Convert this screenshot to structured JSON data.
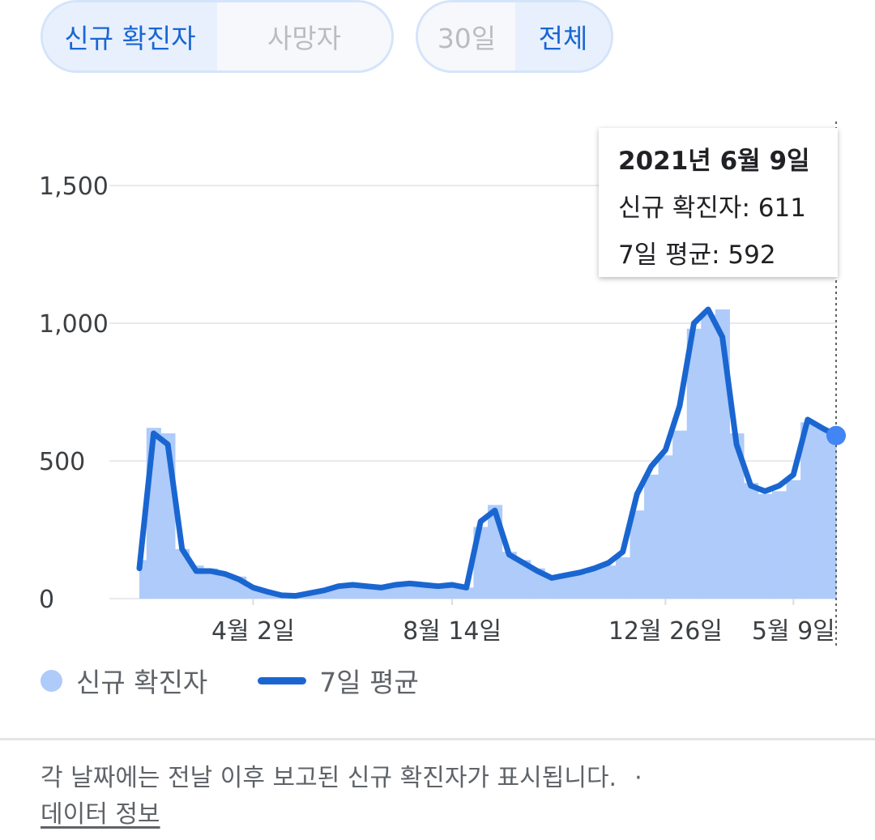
{
  "metric_toggle": {
    "cases": "신규 확진자",
    "deaths": "사망자"
  },
  "range_toggle": {
    "thirty_days": "30일",
    "all": "전체"
  },
  "tooltip": {
    "date": "2021년 6월 9일",
    "cases_line": "신규 확진자: 611",
    "average_line": "7일 평균: 592"
  },
  "legend": {
    "cases": "신규 확진자",
    "average": "7일 평균"
  },
  "footer": {
    "note": "각 날짜에는 전날 이후 보고된 신규 확진자가 표시됩니다.",
    "separator": "·",
    "link": "데이터 정보"
  },
  "colors": {
    "bars": "#aecbfa",
    "average_line": "#1a66d1",
    "marker": "#4285f4"
  },
  "chart_data": {
    "type": "bar",
    "y_ticks": [
      0,
      500,
      1000,
      1500
    ],
    "y_tick_labels": [
      "0",
      "500",
      "1,000",
      "1,500"
    ],
    "ylim": [
      0,
      1700
    ],
    "x_tick_labels": [
      "4월 2일",
      "8월 14일",
      "12월 26일",
      "5월 9일"
    ],
    "grid": true,
    "legend_position": "bottom",
    "selected_index": 49,
    "series": [
      {
        "name": "신규 확진자",
        "values": [
          140,
          620,
          600,
          180,
          120,
          110,
          90,
          80,
          40,
          25,
          15,
          10,
          20,
          30,
          45,
          50,
          45,
          40,
          50,
          55,
          50,
          45,
          50,
          40,
          260,
          340,
          170,
          140,
          110,
          80,
          90,
          90,
          110,
          120,
          150,
          320,
          450,
          520,
          610,
          980,
          1030,
          1050,
          600,
          420,
          380,
          390,
          430,
          640,
          620,
          611
        ]
      },
      {
        "name": "7일 평균",
        "values": [
          110,
          600,
          560,
          180,
          100,
          100,
          90,
          70,
          40,
          25,
          12,
          10,
          20,
          30,
          45,
          50,
          45,
          40,
          50,
          55,
          50,
          45,
          50,
          40,
          280,
          320,
          160,
          130,
          100,
          75,
          85,
          95,
          110,
          130,
          170,
          380,
          480,
          540,
          700,
          1000,
          1050,
          950,
          560,
          410,
          390,
          410,
          450,
          650,
          620,
          592
        ]
      }
    ]
  }
}
